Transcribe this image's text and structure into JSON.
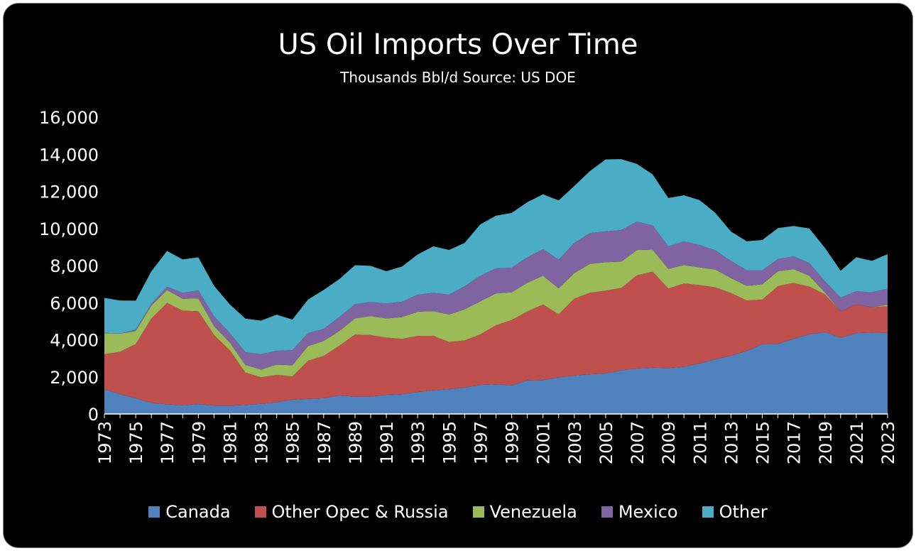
{
  "chart_data": {
    "type": "area",
    "stacked": true,
    "title": "US Oil Imports Over Time",
    "subtitle": "Thousands Bbl/d Source: US DOE",
    "xlabel": "",
    "ylabel": "",
    "ylim": [
      0,
      16000
    ],
    "yticks": [
      0,
      2000,
      4000,
      6000,
      8000,
      10000,
      12000,
      14000,
      16000
    ],
    "ytick_labels": [
      "0",
      "2,000",
      "4,000",
      "6,000",
      "8,000",
      "10,000",
      "12,000",
      "14,000",
      "16,000"
    ],
    "grid": false,
    "legend_position": "bottom",
    "x": [
      1973,
      1974,
      1975,
      1976,
      1977,
      1978,
      1979,
      1980,
      1981,
      1982,
      1983,
      1984,
      1985,
      1986,
      1987,
      1988,
      1989,
      1990,
      1991,
      1992,
      1993,
      1994,
      1995,
      1996,
      1997,
      1998,
      1999,
      2000,
      2001,
      2002,
      2003,
      2004,
      2005,
      2006,
      2007,
      2008,
      2009,
      2010,
      2011,
      2012,
      2013,
      2014,
      2015,
      2016,
      2017,
      2018,
      2019,
      2020,
      2021,
      2022,
      2023
    ],
    "xtick_labels": [
      "1973",
      "1975",
      "1977",
      "1979",
      "1981",
      "1983",
      "1985",
      "1987",
      "1989",
      "1991",
      "1993",
      "1995",
      "1997",
      "1999",
      "2001",
      "2003",
      "2005",
      "2007",
      "2009",
      "2011",
      "2013",
      "2015",
      "2017",
      "2019",
      "2021",
      "2023"
    ],
    "series": [
      {
        "name": "Canada",
        "color": "#4f81bd",
        "values": [
          1325,
          1070,
          846,
          599,
          517,
          467,
          538,
          455,
          447,
          482,
          547,
          630,
          770,
          807,
          848,
          999,
          931,
          934,
          1033,
          1069,
          1181,
          1272,
          1332,
          1424,
          1563,
          1598,
          1539,
          1807,
          1828,
          1971,
          2072,
          2138,
          2181,
          2353,
          2455,
          2493,
          2479,
          2535,
          2729,
          2946,
          3142,
          3388,
          3765,
          3776,
          4053,
          4298,
          4418,
          4108,
          4358,
          4388,
          4372
        ]
      },
      {
        "name": "Other Opec & Russia",
        "color": "#c0504d",
        "values": [
          1900,
          2280,
          2920,
          4550,
          5470,
          5100,
          5000,
          3800,
          3000,
          1750,
          1430,
          1480,
          1250,
          2060,
          2280,
          2680,
          3350,
          3320,
          3080,
          2980,
          3030,
          2940,
          2550,
          2540,
          2730,
          3180,
          3530,
          3720,
          4070,
          3400,
          4150,
          4400,
          4470,
          4440,
          5020,
          5180,
          4280,
          4500,
          4220,
          3880,
          3380,
          2730,
          2400,
          3120,
          3010,
          2570,
          2030,
          1430,
          1540,
          1370,
          1430
        ]
      },
      {
        "name": "Venezuela",
        "color": "#9bbb59",
        "values": [
          1135,
          979,
          702,
          700,
          690,
          645,
          690,
          481,
          406,
          412,
          422,
          548,
          605,
          793,
          804,
          794,
          873,
          1025,
          1035,
          1170,
          1300,
          1334,
          1480,
          1676,
          1773,
          1719,
          1493,
          1546,
          1553,
          1398,
          1376,
          1554,
          1529,
          1419,
          1361,
          1189,
          1063,
          988,
          951,
          960,
          806,
          789,
          827,
          796,
          741,
          586,
          101,
          0,
          0,
          0,
          90
        ]
      },
      {
        "name": "Mexico",
        "color": "#8064a2",
        "values": [
          16,
          8,
          71,
          87,
          179,
          318,
          439,
          533,
          522,
          685,
          826,
          748,
          816,
          699,
          655,
          747,
          767,
          755,
          807,
          830,
          919,
          984,
          1068,
          1244,
          1385,
          1351,
          1324,
          1373,
          1440,
          1547,
          1623,
          1665,
          1662,
          1705,
          1532,
          1302,
          1210,
          1284,
          1206,
          1035,
          919,
          842,
          758,
          658,
          688,
          685,
          605,
          733,
          720,
          795,
          870
        ]
      },
      {
        "name": "Other",
        "color": "#4bacc6",
        "values": [
          1880,
          1780,
          1570,
          1760,
          1930,
          1800,
          1780,
          1640,
          1540,
          1810,
          1810,
          1950,
          1650,
          1810,
          2100,
          2050,
          2100,
          1950,
          1740,
          1900,
          2170,
          2510,
          2410,
          2340,
          2770,
          2840,
          2950,
          2970,
          2950,
          3190,
          3070,
          3340,
          3880,
          3820,
          3110,
          2750,
          2610,
          2480,
          2420,
          2020,
          1590,
          1560,
          1630,
          1670,
          1640,
          1860,
          1800,
          1450,
          1830,
          1700,
          1850
        ]
      }
    ]
  },
  "legend": {
    "items": [
      {
        "label": "Canada",
        "color": "#4f81bd"
      },
      {
        "label": "Other Opec & Russia",
        "color": "#c0504d"
      },
      {
        "label": "Venezuela",
        "color": "#9bbb59"
      },
      {
        "label": "Mexico",
        "color": "#8064a2"
      },
      {
        "label": "Other",
        "color": "#4bacc6"
      }
    ]
  }
}
